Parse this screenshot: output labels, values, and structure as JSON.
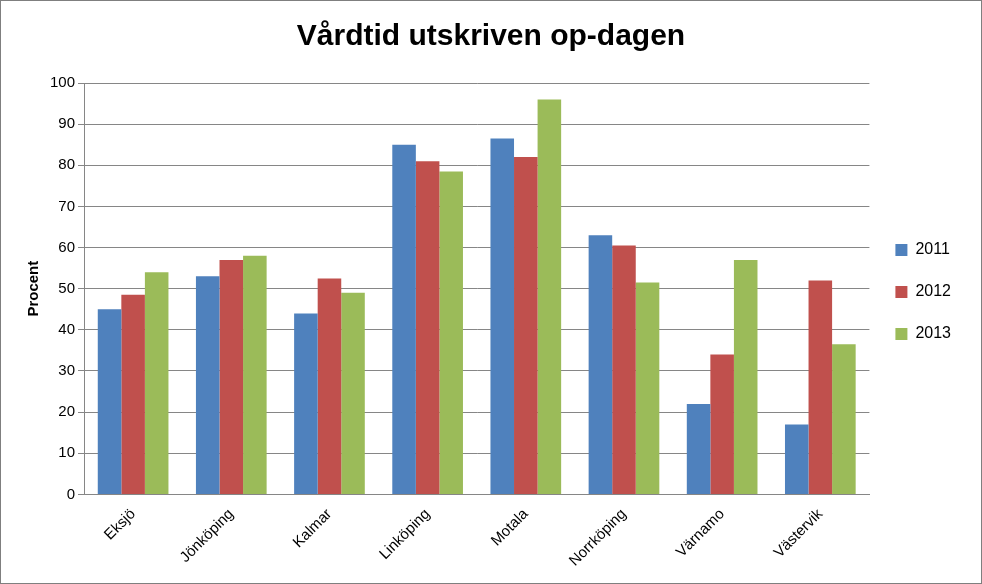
{
  "chart_data": {
    "type": "bar",
    "title": "Vårdtid utskriven op-dagen",
    "y_label": "Procent",
    "categories": [
      "Eksjö",
      "Jönköping",
      "Kalmar",
      "Linköping",
      "Motala",
      "Norrköping",
      "Värnamo",
      "Västervik"
    ],
    "series": [
      {
        "name": "2011",
        "color": "#4f81bd",
        "values": [
          45,
          53,
          44,
          85,
          86.5,
          63,
          22,
          17
        ]
      },
      {
        "name": "2012",
        "color": "#c0504d",
        "values": [
          48.5,
          57,
          52.5,
          81,
          82,
          60.5,
          34,
          52
        ]
      },
      {
        "name": "2013",
        "color": "#9bbb59",
        "values": [
          54,
          58,
          49,
          78.5,
          96,
          51.5,
          57,
          36.5
        ]
      }
    ],
    "ylim": [
      0,
      100
    ],
    "yticks": [
      0,
      10,
      20,
      30,
      40,
      50,
      60,
      70,
      80,
      90,
      100
    ],
    "grid": true,
    "legend": "right"
  }
}
